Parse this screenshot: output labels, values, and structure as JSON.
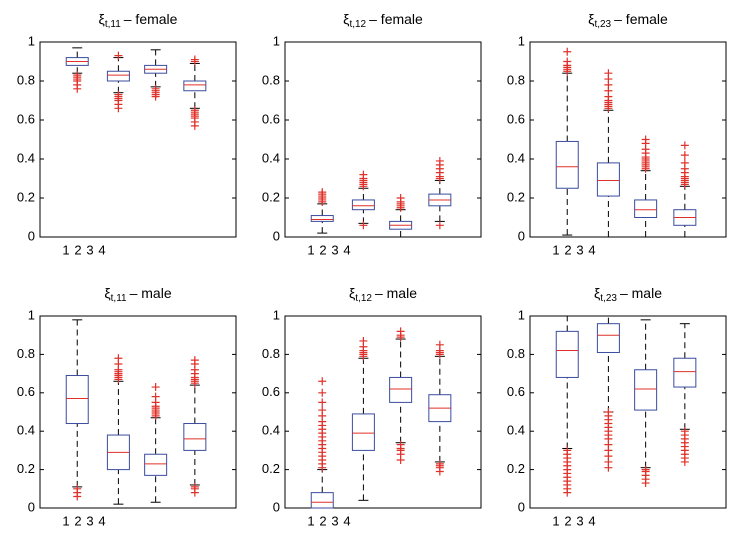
{
  "chart_data": [
    {
      "type": "box",
      "title": {
        "symbol": "ξ",
        "subscript": "t,11",
        "text": "– female"
      },
      "categories": [
        "1",
        "2",
        "3",
        "4"
      ],
      "ylim": [
        0,
        1
      ],
      "yticks": [
        0,
        0.2,
        0.4,
        0.6,
        0.8,
        1
      ],
      "box_color": "#3a4c9e",
      "median_color": "#e0302a",
      "outlier_color": "#e0302a",
      "boxes": [
        {
          "low": 0.84,
          "q1": 0.88,
          "median": 0.9,
          "q3": 0.92,
          "high": 0.97,
          "outliers": [
            0.76,
            0.78,
            0.8,
            0.81,
            0.82,
            0.83
          ]
        },
        {
          "low": 0.74,
          "q1": 0.8,
          "median": 0.83,
          "q3": 0.85,
          "high": 0.92,
          "outliers": [
            0.66,
            0.68,
            0.7,
            0.71,
            0.72,
            0.73,
            0.93
          ]
        },
        {
          "low": 0.77,
          "q1": 0.84,
          "median": 0.86,
          "q3": 0.88,
          "high": 0.96,
          "outliers": [
            0.72,
            0.73,
            0.74,
            0.75,
            0.76
          ]
        },
        {
          "low": 0.66,
          "q1": 0.75,
          "median": 0.78,
          "q3": 0.8,
          "high": 0.89,
          "outliers": [
            0.57,
            0.59,
            0.61,
            0.62,
            0.63,
            0.64,
            0.65,
            0.9,
            0.91
          ]
        }
      ]
    },
    {
      "type": "box",
      "title": {
        "symbol": "ξ",
        "subscript": "t,12",
        "text": "– female"
      },
      "categories": [
        "1",
        "2",
        "3",
        "4"
      ],
      "ylim": [
        0,
        1
      ],
      "yticks": [
        0,
        0.2,
        0.4,
        0.6,
        0.8,
        1
      ],
      "box_color": "#3a4c9e",
      "median_color": "#e0302a",
      "outlier_color": "#e0302a",
      "boxes": [
        {
          "low": 0.02,
          "q1": 0.08,
          "median": 0.09,
          "q3": 0.11,
          "high": 0.17,
          "outliers": [
            0.18,
            0.19,
            0.2,
            0.21,
            0.22,
            0.23
          ]
        },
        {
          "low": 0.07,
          "q1": 0.14,
          "median": 0.16,
          "q3": 0.19,
          "high": 0.25,
          "outliers": [
            0.26,
            0.27,
            0.28,
            0.29,
            0.3,
            0.32,
            0.06
          ]
        },
        {
          "low": 0,
          "q1": 0.04,
          "median": 0.06,
          "q3": 0.08,
          "high": 0.14,
          "outliers": [
            0.15,
            0.16,
            0.17,
            0.18,
            0.2
          ]
        },
        {
          "low": 0.08,
          "q1": 0.16,
          "median": 0.19,
          "q3": 0.22,
          "high": 0.29,
          "outliers": [
            0.3,
            0.31,
            0.33,
            0.35,
            0.37,
            0.39,
            0.06
          ]
        }
      ]
    },
    {
      "type": "box",
      "title": {
        "symbol": "ξ",
        "subscript": "t,23",
        "text": "– female"
      },
      "categories": [
        "1",
        "2",
        "3",
        "4"
      ],
      "ylim": [
        0,
        1
      ],
      "yticks": [
        0,
        0.2,
        0.4,
        0.6,
        0.8,
        1
      ],
      "box_color": "#3a4c9e",
      "median_color": "#e0302a",
      "outlier_color": "#e0302a",
      "boxes": [
        {
          "low": 0.01,
          "q1": 0.25,
          "median": 0.36,
          "q3": 0.49,
          "high": 0.84,
          "outliers": [
            0.85,
            0.86,
            0.87,
            0.88,
            0.9,
            0.95
          ]
        },
        {
          "low": 0,
          "q1": 0.21,
          "median": 0.29,
          "q3": 0.38,
          "high": 0.65,
          "outliers": [
            0.66,
            0.67,
            0.68,
            0.69,
            0.7,
            0.72,
            0.75,
            0.78,
            0.81,
            0.84
          ]
        },
        {
          "low": 0,
          "q1": 0.1,
          "median": 0.14,
          "q3": 0.19,
          "high": 0.34,
          "outliers": [
            0.35,
            0.36,
            0.37,
            0.38,
            0.39,
            0.4,
            0.41,
            0.43,
            0.45,
            0.48,
            0.5
          ]
        },
        {
          "low": 0,
          "q1": 0.06,
          "median": 0.1,
          "q3": 0.14,
          "high": 0.26,
          "outliers": [
            0.27,
            0.28,
            0.29,
            0.3,
            0.31,
            0.33,
            0.35,
            0.38,
            0.42,
            0.47
          ]
        }
      ]
    },
    {
      "type": "box",
      "title": {
        "symbol": "ξ",
        "subscript": "t,11",
        "text": "– male"
      },
      "categories": [
        "1",
        "2",
        "3",
        "4"
      ],
      "ylim": [
        0,
        1
      ],
      "yticks": [
        0,
        0.2,
        0.4,
        0.6,
        0.8,
        1
      ],
      "box_color": "#3a4c9e",
      "median_color": "#e0302a",
      "outlier_color": "#e0302a",
      "boxes": [
        {
          "low": 0.11,
          "q1": 0.44,
          "median": 0.57,
          "q3": 0.69,
          "high": 0.98,
          "outliers": [
            0.06,
            0.08,
            0.1
          ]
        },
        {
          "low": 0.02,
          "q1": 0.2,
          "median": 0.29,
          "q3": 0.38,
          "high": 0.66,
          "outliers": [
            0.67,
            0.68,
            0.69,
            0.7,
            0.71,
            0.72,
            0.75,
            0.78
          ]
        },
        {
          "low": 0.03,
          "q1": 0.17,
          "median": 0.23,
          "q3": 0.28,
          "high": 0.47,
          "outliers": [
            0.48,
            0.49,
            0.5,
            0.51,
            0.52,
            0.53,
            0.55,
            0.58,
            0.63
          ]
        },
        {
          "low": 0.12,
          "q1": 0.3,
          "median": 0.36,
          "q3": 0.44,
          "high": 0.64,
          "outliers": [
            0.65,
            0.66,
            0.67,
            0.68,
            0.7,
            0.72,
            0.75,
            0.77,
            0.08,
            0.1,
            0.11
          ]
        }
      ]
    },
    {
      "type": "box",
      "title": {
        "symbol": "ξ",
        "subscript": "t,12",
        "text": "– male"
      },
      "categories": [
        "1",
        "2",
        "3",
        "4"
      ],
      "ylim": [
        0,
        1
      ],
      "yticks": [
        0,
        0.2,
        0.4,
        0.6,
        0.8,
        1
      ],
      "box_color": "#3a4c9e",
      "median_color": "#e0302a",
      "outlier_color": "#e0302a",
      "boxes": [
        {
          "low": 0,
          "q1": 0,
          "median": 0.03,
          "q3": 0.08,
          "high": 0.2,
          "outliers": [
            0.21,
            0.23,
            0.25,
            0.27,
            0.29,
            0.31,
            0.33,
            0.35,
            0.37,
            0.39,
            0.41,
            0.43,
            0.45,
            0.48,
            0.51,
            0.55,
            0.6,
            0.66
          ]
        },
        {
          "low": 0.04,
          "q1": 0.3,
          "median": 0.39,
          "q3": 0.49,
          "high": 0.78,
          "outliers": [
            0.79,
            0.8,
            0.81,
            0.82,
            0.84,
            0.87
          ]
        },
        {
          "low": 0.34,
          "q1": 0.55,
          "median": 0.62,
          "q3": 0.68,
          "high": 0.88,
          "outliers": [
            0.89,
            0.9,
            0.92,
            0.25,
            0.28,
            0.3,
            0.31,
            0.33
          ]
        },
        {
          "low": 0.24,
          "q1": 0.45,
          "median": 0.52,
          "q3": 0.59,
          "high": 0.79,
          "outliers": [
            0.8,
            0.81,
            0.82,
            0.85,
            0.19,
            0.21,
            0.22,
            0.23
          ]
        }
      ]
    },
    {
      "type": "box",
      "title": {
        "symbol": "ξ",
        "subscript": "t,23",
        "text": "– male"
      },
      "categories": [
        "1",
        "2",
        "3",
        "4"
      ],
      "ylim": [
        0,
        1
      ],
      "yticks": [
        0,
        0.2,
        0.4,
        0.6,
        0.8,
        1
      ],
      "box_color": "#3a4c9e",
      "median_color": "#e0302a",
      "outlier_color": "#e0302a",
      "boxes": [
        {
          "low": 0.31,
          "q1": 0.68,
          "median": 0.82,
          "q3": 0.92,
          "high": 1,
          "outliers": [
            0.08,
            0.1,
            0.12,
            0.14,
            0.16,
            0.18,
            0.2,
            0.22,
            0.24,
            0.26,
            0.28,
            0.3
          ]
        },
        {
          "low": 0.5,
          "q1": 0.81,
          "median": 0.9,
          "q3": 0.96,
          "high": 1,
          "outliers": [
            0.21,
            0.24,
            0.27,
            0.3,
            0.33,
            0.36,
            0.38,
            0.4,
            0.42,
            0.44,
            0.46,
            0.48,
            0.5
          ]
        },
        {
          "low": 0.21,
          "q1": 0.51,
          "median": 0.62,
          "q3": 0.72,
          "high": 0.98,
          "outliers": [
            0.13,
            0.15,
            0.17,
            0.19,
            0.2
          ]
        },
        {
          "low": 0.41,
          "q1": 0.63,
          "median": 0.71,
          "q3": 0.78,
          "high": 0.96,
          "outliers": [
            0.24,
            0.26,
            0.28,
            0.3,
            0.32,
            0.34,
            0.36,
            0.38,
            0.4
          ]
        }
      ]
    }
  ]
}
